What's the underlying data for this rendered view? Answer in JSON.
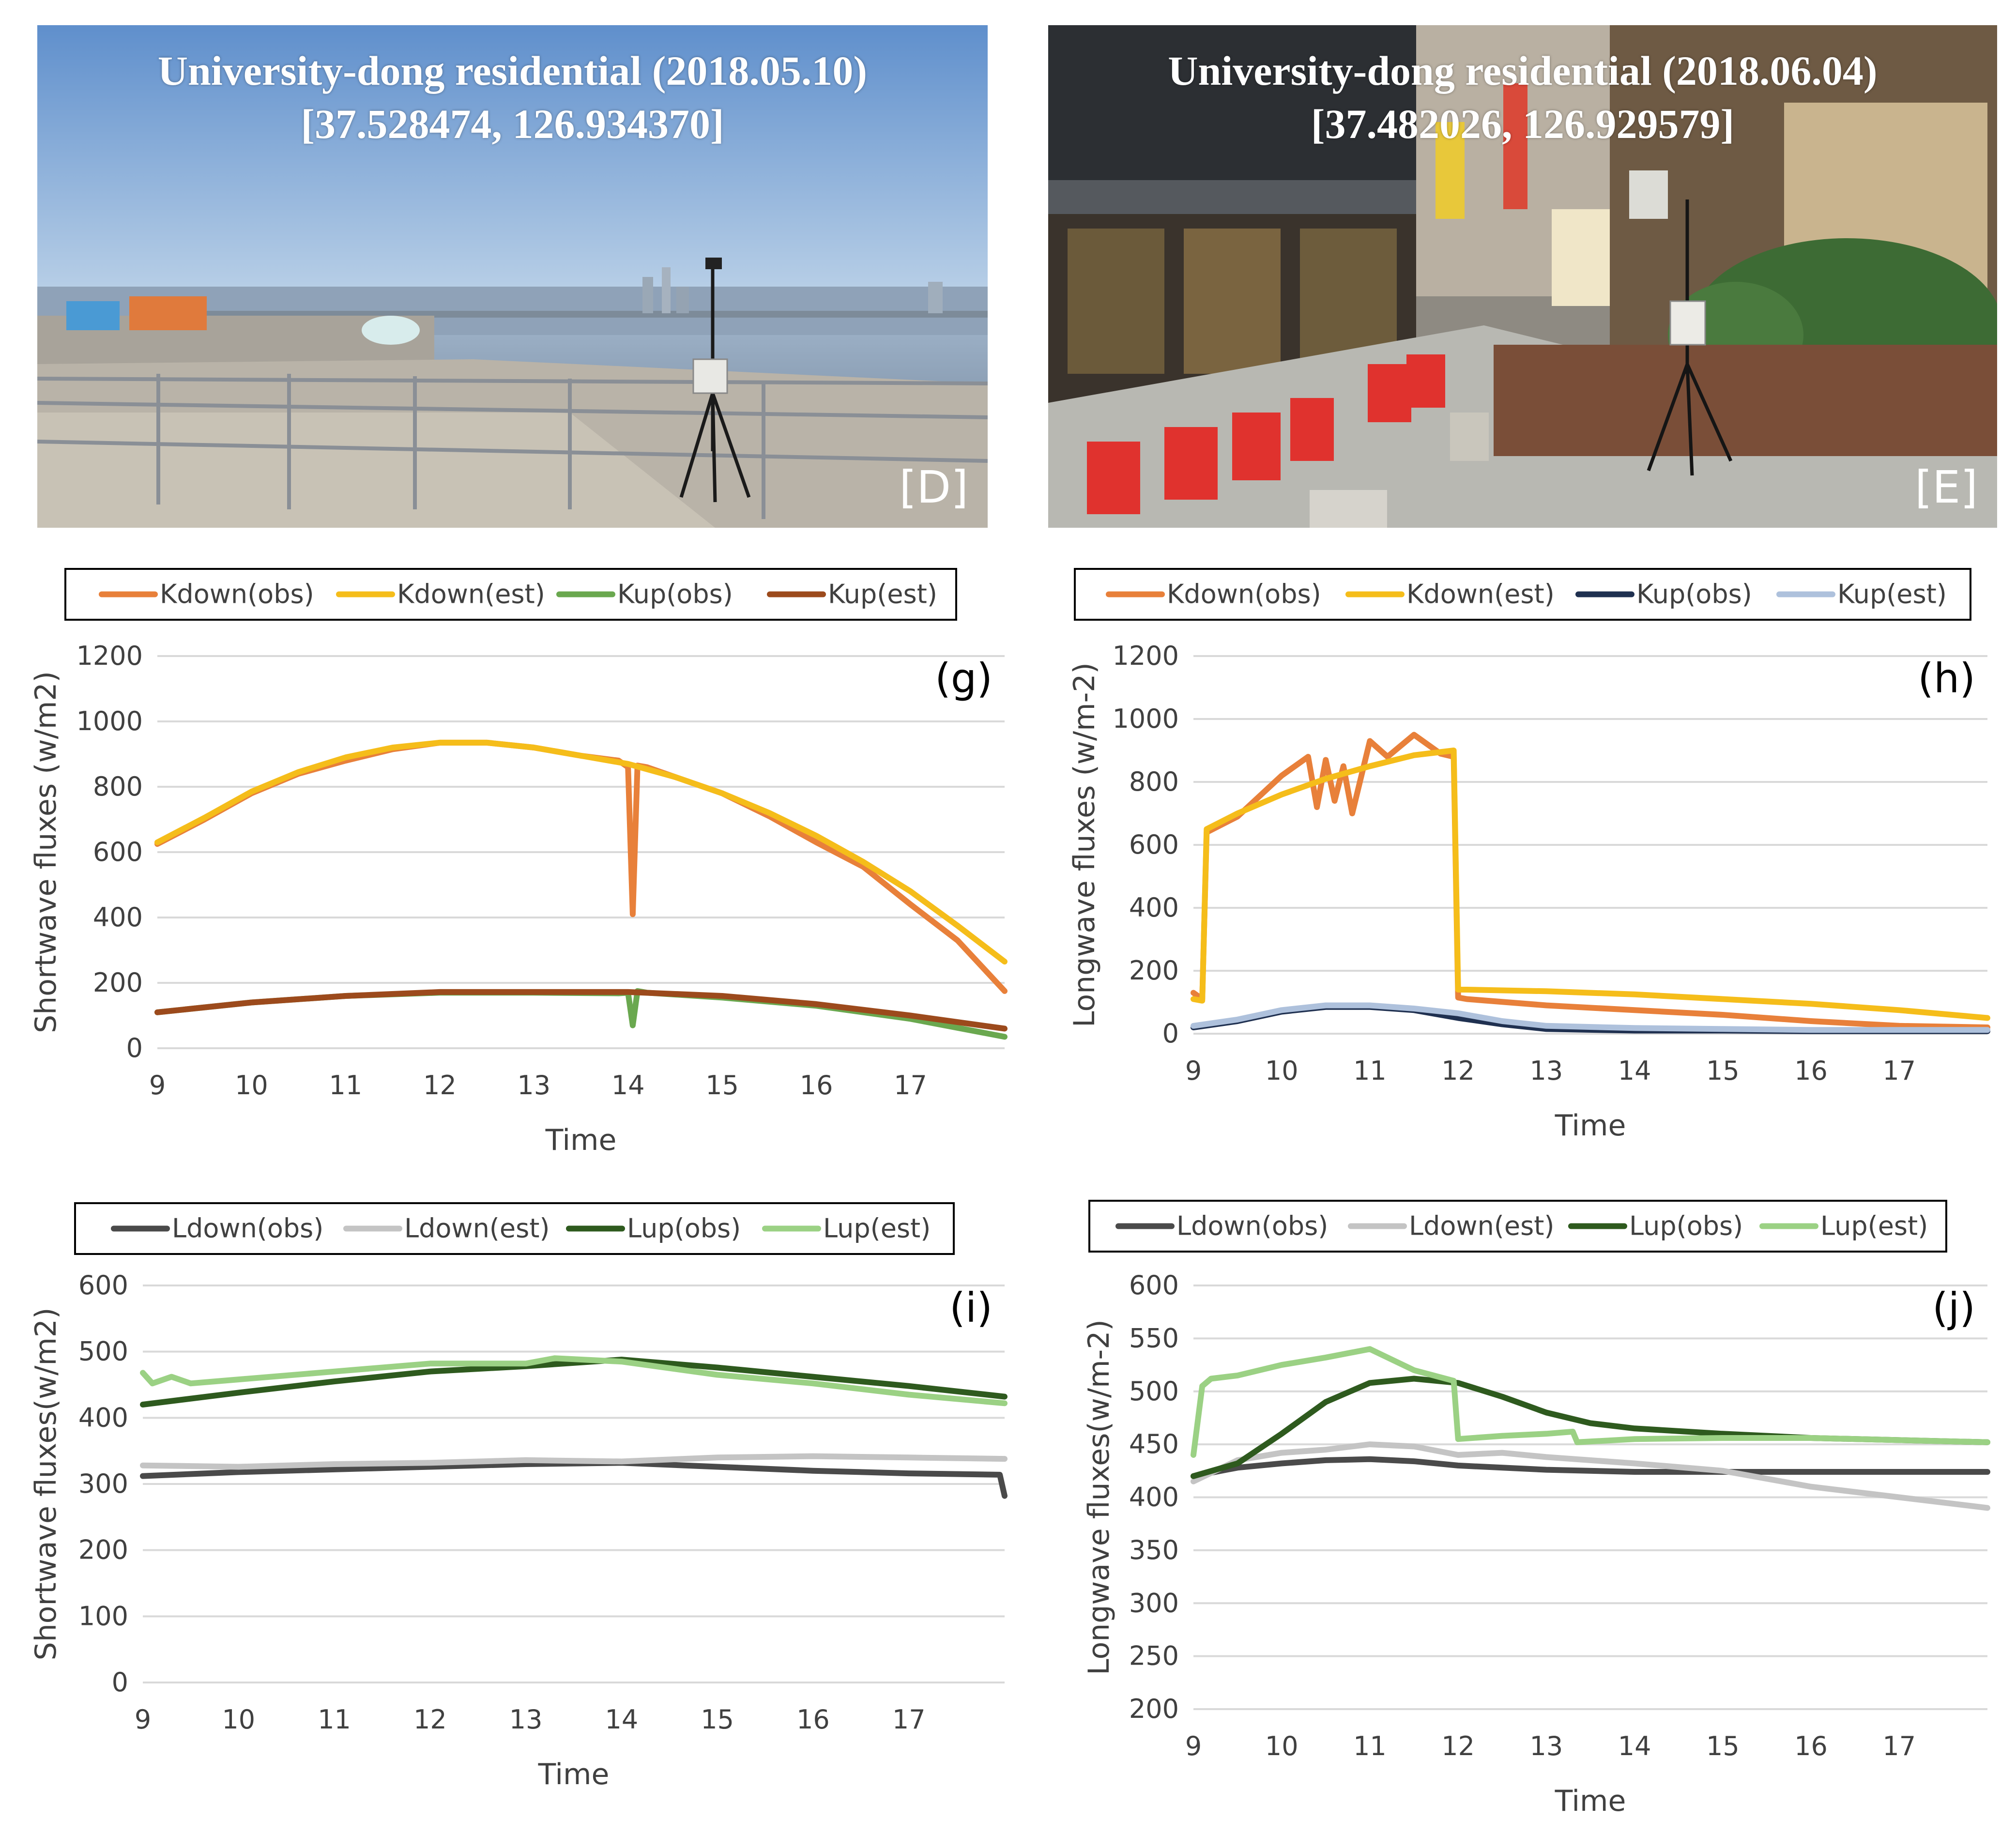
{
  "photos": [
    {
      "title": "University-dong residential (2018.05.10)",
      "coords": "[37.528474, 126.934370]",
      "tag": "[D]"
    },
    {
      "title": "University-dong residential (2018.06.04)",
      "coords": "[37.482026, 126.929579]",
      "tag": "[E]"
    }
  ],
  "colors": {
    "kdown_obs": "#e8803a",
    "kdown_est": "#f5bd1a",
    "kup_obs_g": "#6aa84f",
    "kup_est_g": "#9c4a1c",
    "kup_obs_h": "#1f3050",
    "kup_est_h": "#aec1dc",
    "ldown_obs": "#4a4a4a",
    "ldown_est": "#c4c4c4",
    "lup_obs": "#2e5a1e",
    "lup_est": "#9bd184",
    "grid": "#d9d9d9"
  },
  "chart_data": [
    {
      "type": "line",
      "panel": "(g)",
      "xlabel": "Time",
      "ylabel": "Shortwave fluxes (w/m2)",
      "xlim": [
        9,
        18
      ],
      "ylim": [
        0,
        1200
      ],
      "xticks": [
        9,
        10,
        11,
        12,
        13,
        14,
        15,
        16,
        17
      ],
      "yticks": [
        0,
        200,
        400,
        600,
        800,
        1000,
        1200
      ],
      "series": [
        {
          "name": "Kdown(obs)",
          "color": "#e8803a",
          "x": [
            9,
            9.5,
            10,
            10.5,
            11,
            11.5,
            12,
            12.5,
            13,
            13.5,
            13.9,
            14.0,
            14.05,
            14.1,
            14.2,
            14.5,
            15,
            15.5,
            16,
            16.5,
            17,
            17.5,
            18
          ],
          "y": [
            625,
            700,
            780,
            840,
            880,
            915,
            935,
            935,
            920,
            895,
            880,
            860,
            410,
            865,
            860,
            830,
            780,
            710,
            630,
            555,
            440,
            330,
            175
          ]
        },
        {
          "name": "Kdown(est)",
          "color": "#f5bd1a",
          "x": [
            9,
            9.5,
            10,
            10.5,
            11,
            11.5,
            12,
            12.5,
            13,
            13.5,
            14,
            14.5,
            15,
            15.5,
            16,
            16.5,
            17,
            17.5,
            18
          ],
          "y": [
            630,
            705,
            785,
            845,
            890,
            920,
            935,
            935,
            920,
            895,
            870,
            830,
            780,
            720,
            650,
            570,
            480,
            375,
            265
          ]
        },
        {
          "name": "Kup(obs)",
          "color": "#6aa84f",
          "x": [
            9,
            10,
            11,
            12,
            13,
            13.9,
            14.0,
            14.05,
            14.1,
            14.2,
            15,
            16,
            17,
            18
          ],
          "y": [
            110,
            140,
            160,
            170,
            170,
            168,
            170,
            70,
            175,
            170,
            155,
            130,
            90,
            35
          ]
        },
        {
          "name": "Kup(est)",
          "color": "#9c4a1c",
          "x": [
            9,
            10,
            11,
            12,
            13,
            14,
            15,
            16,
            17,
            18
          ],
          "y": [
            110,
            140,
            160,
            172,
            172,
            172,
            160,
            135,
            100,
            60
          ]
        }
      ]
    },
    {
      "type": "line",
      "panel": "(h)",
      "xlabel": "Time",
      "ylabel": "Longwave fluxes (w/m-2)",
      "xlim": [
        9,
        18
      ],
      "ylim": [
        0,
        1200
      ],
      "xticks": [
        9,
        10,
        11,
        12,
        13,
        14,
        15,
        16,
        17
      ],
      "yticks": [
        0,
        200,
        400,
        600,
        800,
        1000,
        1200
      ],
      "series": [
        {
          "name": "Kdown(obs)",
          "color": "#e8803a",
          "x": [
            9,
            9.1,
            9.15,
            9.5,
            10,
            10.3,
            10.4,
            10.5,
            10.6,
            10.7,
            10.8,
            11,
            11.2,
            11.5,
            11.8,
            11.95,
            12.0,
            12.1,
            13,
            14,
            15,
            16,
            17,
            18
          ],
          "y": [
            130,
            110,
            640,
            690,
            820,
            880,
            720,
            870,
            740,
            850,
            700,
            930,
            880,
            950,
            890,
            880,
            115,
            110,
            90,
            75,
            60,
            40,
            25,
            20
          ]
        },
        {
          "name": "Kdown(est)",
          "color": "#f5bd1a",
          "x": [
            9,
            9.1,
            9.15,
            9.5,
            10,
            10.5,
            11,
            11.5,
            11.95,
            12.0,
            12.1,
            13,
            14,
            15,
            16,
            17,
            18
          ],
          "y": [
            110,
            105,
            650,
            700,
            760,
            810,
            850,
            885,
            900,
            140,
            140,
            135,
            125,
            110,
            95,
            75,
            50
          ]
        },
        {
          "name": "Kup(obs)",
          "color": "#1f3050",
          "x": [
            9,
            9.5,
            10,
            10.5,
            11,
            11.5,
            12,
            12.5,
            13,
            14,
            15,
            16,
            17,
            18
          ],
          "y": [
            20,
            40,
            70,
            85,
            85,
            75,
            50,
            30,
            15,
            10,
            10,
            8,
            8,
            8
          ]
        },
        {
          "name": "Kup(est)",
          "color": "#aec1dc",
          "x": [
            9,
            9.5,
            10,
            10.5,
            11,
            11.5,
            12,
            12.5,
            13,
            14,
            15,
            16,
            17,
            18
          ],
          "y": [
            25,
            45,
            75,
            90,
            90,
            80,
            65,
            40,
            25,
            18,
            15,
            12,
            12,
            12
          ]
        }
      ]
    },
    {
      "type": "line",
      "panel": "(i)",
      "xlabel": "Time",
      "ylabel": "Shortwave fluxes(w/m2)",
      "xlim": [
        9,
        18
      ],
      "ylim": [
        0,
        600
      ],
      "xticks": [
        9,
        10,
        11,
        12,
        13,
        14,
        15,
        16,
        17
      ],
      "yticks": [
        0,
        100,
        200,
        300,
        400,
        500,
        600
      ],
      "series": [
        {
          "name": "Ldown(obs)",
          "color": "#4a4a4a",
          "x": [
            9,
            10,
            11,
            12,
            13,
            14,
            15,
            16,
            17,
            17.95,
            18
          ],
          "y": [
            312,
            318,
            322,
            326,
            330,
            332,
            326,
            320,
            316,
            314,
            282
          ]
        },
        {
          "name": "Ldown(est)",
          "color": "#c4c4c4",
          "x": [
            9,
            10,
            11,
            12,
            13,
            14,
            15,
            16,
            17,
            18
          ],
          "y": [
            328,
            326,
            330,
            332,
            336,
            334,
            340,
            342,
            340,
            338
          ]
        },
        {
          "name": "Lup(obs)",
          "color": "#2e5a1e",
          "x": [
            9,
            10,
            11,
            12,
            13,
            14,
            15,
            16,
            17,
            18
          ],
          "y": [
            420,
            438,
            455,
            470,
            478,
            488,
            476,
            462,
            448,
            432
          ]
        },
        {
          "name": "Lup(est)",
          "color": "#9bd184",
          "x": [
            9,
            9.1,
            9.3,
            9.5,
            10,
            11,
            12,
            13,
            13.3,
            14,
            15,
            16,
            17,
            18
          ],
          "y": [
            468,
            452,
            462,
            452,
            458,
            470,
            482,
            482,
            490,
            485,
            465,
            452,
            435,
            422
          ]
        }
      ]
    },
    {
      "type": "line",
      "panel": "(j)",
      "xlabel": "Time",
      "ylabel": "Longwave fluxes(w/m-2)",
      "xlim": [
        9,
        18
      ],
      "ylim": [
        200,
        600
      ],
      "xticks": [
        9,
        10,
        11,
        12,
        13,
        14,
        15,
        16,
        17
      ],
      "yticks": [
        200,
        250,
        300,
        350,
        400,
        450,
        500,
        550,
        600
      ],
      "series": [
        {
          "name": "Ldown(obs)",
          "color": "#4a4a4a",
          "x": [
            9,
            9.5,
            10,
            10.5,
            11,
            11.5,
            12,
            12.5,
            13,
            14,
            15,
            16,
            17,
            18
          ],
          "y": [
            420,
            428,
            432,
            435,
            436,
            434,
            430,
            428,
            426,
            424,
            424,
            424,
            424,
            424
          ]
        },
        {
          "name": "Ldown(est)",
          "color": "#c4c4c4",
          "x": [
            9,
            9.5,
            10,
            10.5,
            11,
            11.5,
            12,
            12.5,
            13,
            14,
            15,
            16,
            17,
            18
          ],
          "y": [
            415,
            435,
            442,
            445,
            450,
            448,
            440,
            442,
            438,
            432,
            425,
            410,
            400,
            390
          ]
        },
        {
          "name": "Lup(obs)",
          "color": "#2e5a1e",
          "x": [
            9,
            9.5,
            10,
            10.5,
            11,
            11.5,
            12,
            12.5,
            13,
            13.5,
            14,
            15,
            16,
            17,
            18
          ],
          "y": [
            420,
            432,
            460,
            490,
            508,
            512,
            508,
            495,
            480,
            470,
            465,
            460,
            456,
            454,
            452
          ]
        },
        {
          "name": "Lup(est)",
          "color": "#9bd184",
          "x": [
            9,
            9.1,
            9.2,
            9.5,
            10,
            10.5,
            11,
            11.5,
            11.95,
            12.0,
            12.5,
            13,
            13.3,
            13.35,
            14,
            15,
            16,
            17,
            18
          ],
          "y": [
            440,
            505,
            512,
            515,
            525,
            532,
            540,
            520,
            510,
            455,
            458,
            460,
            462,
            452,
            455,
            456,
            456,
            454,
            452
          ]
        }
      ]
    }
  ]
}
